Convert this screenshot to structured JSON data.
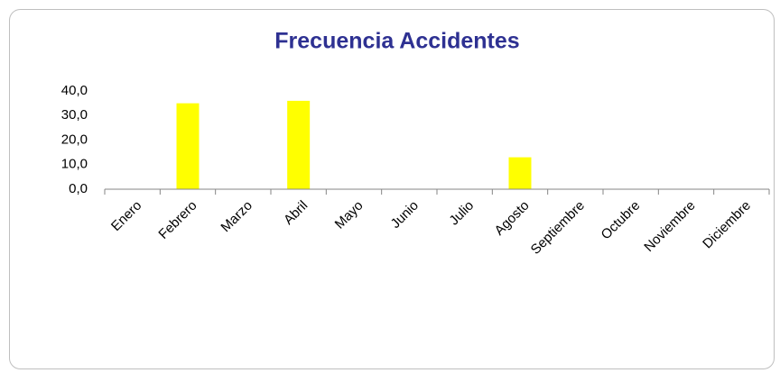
{
  "chart_data": {
    "type": "bar",
    "title": "Frecuencia Accidentes",
    "categories": [
      "Enero",
      "Febrero",
      "Marzo",
      "Abril",
      "Mayo",
      "Junio",
      "Julio",
      "Agosto",
      "Septiembre",
      "Octubre",
      "Noviembre",
      "Diciembre"
    ],
    "values": [
      0,
      35,
      0,
      36,
      0,
      0,
      0,
      13,
      0,
      0,
      0,
      0
    ],
    "color": "#ffff00",
    "ylim": [
      0,
      40
    ],
    "yticks": [
      {
        "value": 0,
        "label": "0,0"
      },
      {
        "value": 10,
        "label": "10,0"
      },
      {
        "value": 20,
        "label": "20,0"
      },
      {
        "value": 30,
        "label": "30,0"
      },
      {
        "value": 40,
        "label": "40,0"
      }
    ],
    "grid": false
  }
}
